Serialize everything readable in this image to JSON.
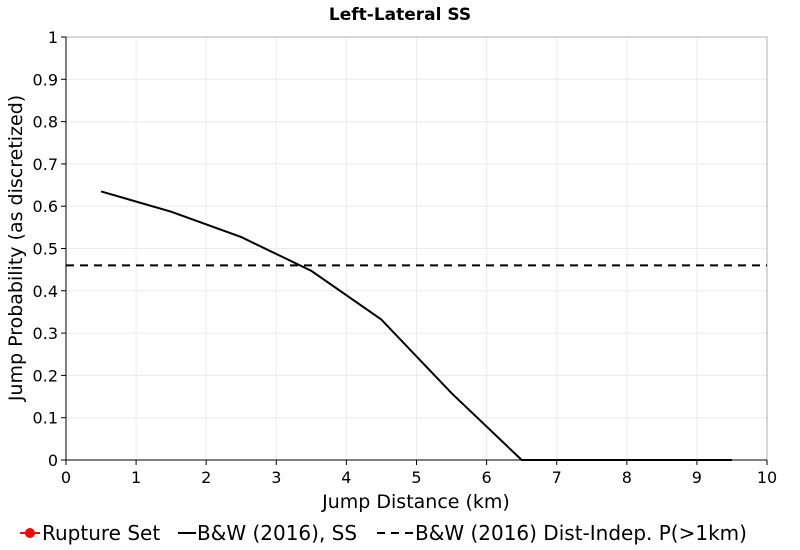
{
  "chart_data": {
    "type": "line",
    "title": "Left-Lateral SS",
    "xlabel": "Jump Distance (km)",
    "ylabel": "Jump Probability (as discretized)",
    "xlim": [
      0,
      10
    ],
    "ylim": [
      0,
      1
    ],
    "xticks": [
      0,
      1,
      2,
      3,
      4,
      5,
      6,
      7,
      8,
      9,
      10
    ],
    "yticks": [
      0,
      0.1,
      0.2,
      0.3,
      0.4,
      0.5,
      0.6,
      0.7,
      0.8,
      0.9,
      1
    ],
    "xtick_labels": [
      "0",
      "1",
      "2",
      "3",
      "4",
      "5",
      "6",
      "7",
      "8",
      "9",
      "10"
    ],
    "ytick_labels": [
      "0",
      "0.1",
      "0.2",
      "0.3",
      "0.4",
      "0.5",
      "0.6",
      "0.7",
      "0.8",
      "0.9",
      "1"
    ],
    "grid": true,
    "legend_position": "bottom",
    "series": [
      {
        "name": "Rupture Set",
        "color": "#ff0000",
        "style": "solid",
        "marker": "circle",
        "x": [],
        "y": []
      },
      {
        "name": "B&W (2016), SS",
        "color": "#000000",
        "style": "solid",
        "x": [
          0.5,
          1.5,
          2.5,
          3.5,
          4.5,
          5.5,
          6.5,
          7.5,
          8.5,
          9.5
        ],
        "y": [
          0.635,
          0.587,
          0.527,
          0.447,
          0.332,
          0.158,
          0.0,
          0.0,
          0.0,
          0.0
        ]
      },
      {
        "name": "B&W (2016) Dist-Indep. P(>1km)",
        "color": "#000000",
        "style": "dashed",
        "x": [
          0,
          10
        ],
        "y": [
          0.46,
          0.46
        ]
      }
    ]
  }
}
